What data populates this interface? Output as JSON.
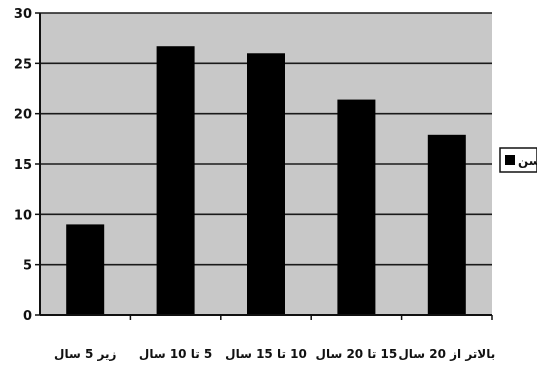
{
  "chart_data": {
    "type": "bar",
    "categories": [
      "زیر 5 سال",
      "5 تا 10 سال",
      "10 تا 15 سال",
      "15 تا 20 سال",
      "بالاتر از 20 سال"
    ],
    "series": [
      {
        "name": "سن",
        "values": [
          9,
          26.7,
          26,
          21.4,
          17.9
        ],
        "color": "#000000"
      }
    ],
    "ylim": [
      0,
      30
    ],
    "yticks": [
      0,
      5,
      10,
      15,
      20,
      25,
      30
    ],
    "grid": true,
    "legend_position": "right",
    "colors": {
      "plot_background": "#c8c8c8",
      "gridline": "#1a1a1a",
      "bar": "#000000"
    }
  }
}
